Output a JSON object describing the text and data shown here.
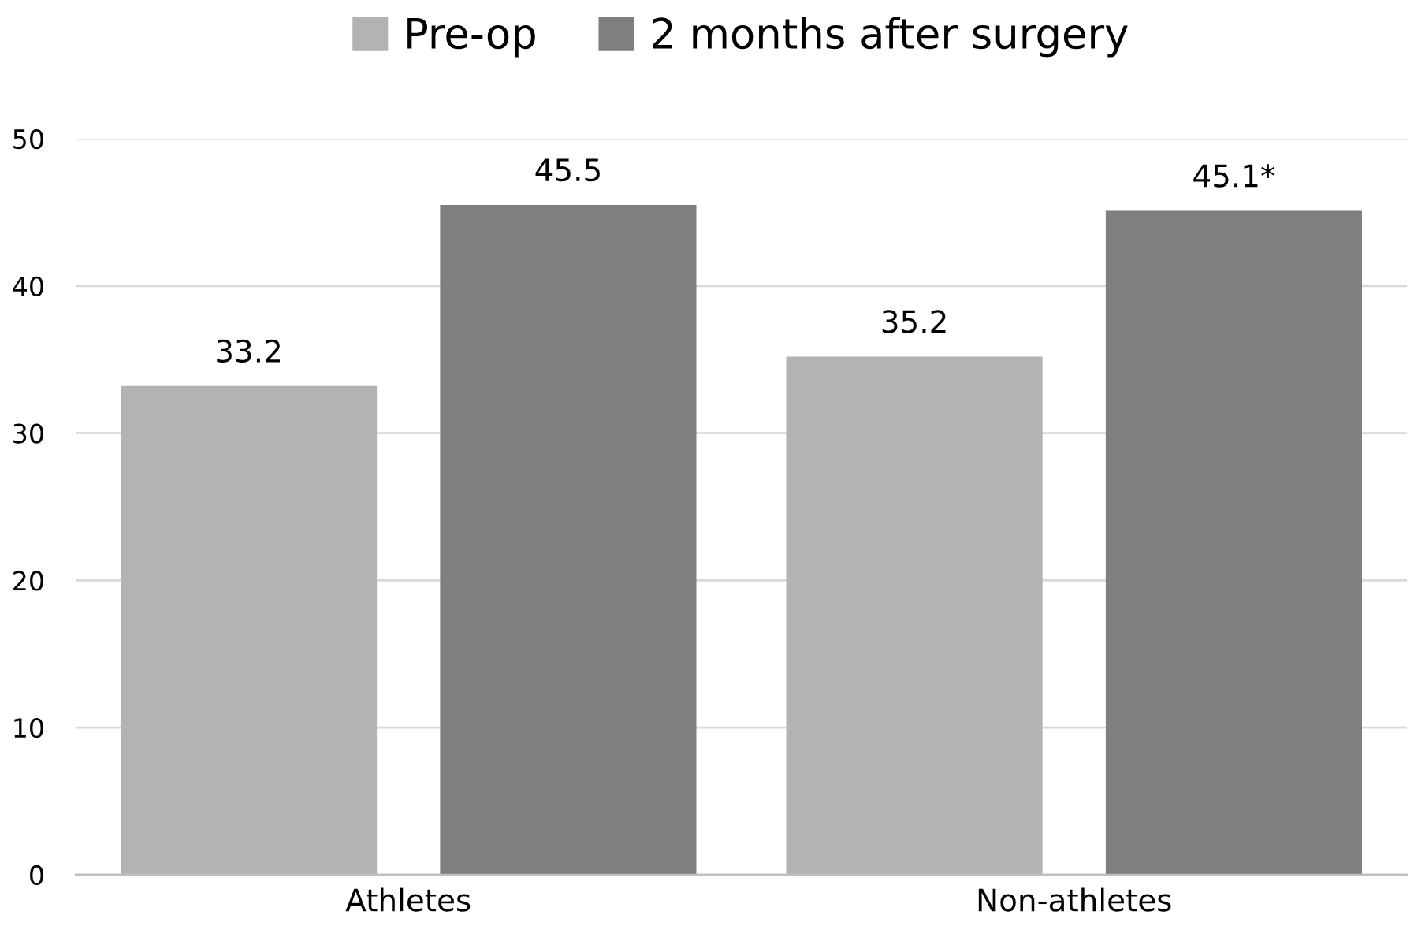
{
  "chart_data": {
    "type": "bar",
    "categories": [
      "Athletes",
      "Non-athletes"
    ],
    "series": [
      {
        "name": "Pre-op",
        "color": "#b3b3b3",
        "values": [
          33.2,
          35.2
        ],
        "value_labels": [
          "33.2",
          "35.2"
        ]
      },
      {
        "name": "2 months after surgery",
        "color": "#7f7f7f",
        "values": [
          45.5,
          45.1
        ],
        "value_labels": [
          "45.5",
          "45.1*"
        ]
      }
    ],
    "ylim": [
      0,
      50
    ],
    "yticks": [
      0,
      10,
      20,
      30,
      40,
      50
    ],
    "grid": "y",
    "legend": "top"
  }
}
